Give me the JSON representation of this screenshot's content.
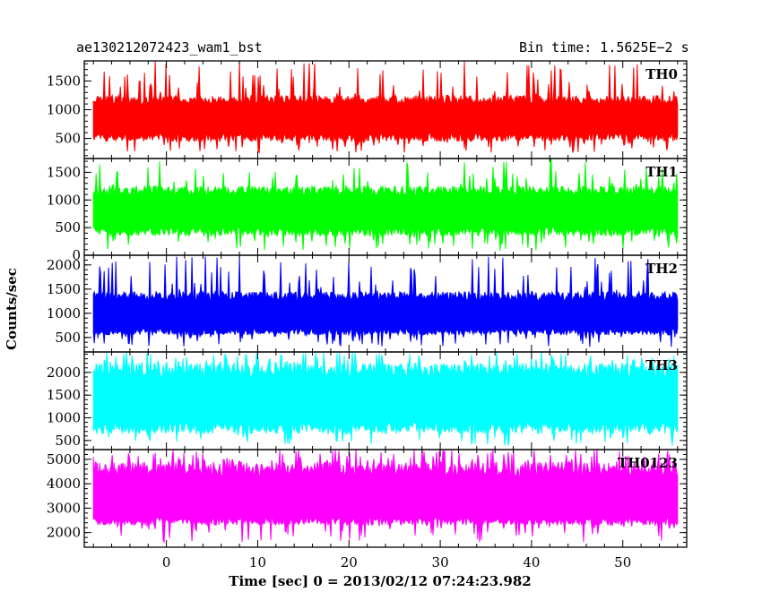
{
  "header": {
    "title": "ae130212072423_wam1_bst",
    "bin_time": "Bin time: 1.5625E−2 s"
  },
  "chart_data": {
    "type": "line",
    "title": "ae130212072423_wam1_bst",
    "subtitle": "Bin time: 1.5625E−2 s",
    "xlabel": "Time [sec] 0 = 2013/02/12 07:24:23.982",
    "ylabel": "Counts/sec",
    "xlim": [
      -9,
      57
    ],
    "x_ticks": [
      0,
      10,
      20,
      30,
      40,
      50
    ],
    "x_range_data": [
      -8,
      56
    ],
    "bin_time_s": 0.015625,
    "grid": false,
    "legend": "none",
    "panels": [
      {
        "name": "TH0",
        "color": "#ff0000",
        "ylim": [
          150,
          1850
        ],
        "y_ticks": [
          500,
          1000,
          1500
        ],
        "typical_min": 250,
        "typical_low": 450,
        "mean": 800,
        "typical_high": 1250,
        "max": 1850
      },
      {
        "name": "TH1",
        "color": "#00ff00",
        "ylim": [
          0,
          1750
        ],
        "y_ticks": [
          0,
          500,
          1000,
          1500
        ],
        "typical_min": 80,
        "typical_low": 350,
        "mean": 750,
        "typical_high": 1250,
        "max": 1750
      },
      {
        "name": "TH2",
        "color": "#0000ff",
        "ylim": [
          200,
          2200
        ],
        "y_ticks": [
          500,
          1000,
          1500,
          2000
        ],
        "typical_min": 300,
        "typical_low": 550,
        "mean": 900,
        "typical_high": 1450,
        "max": 2200
      },
      {
        "name": "TH3",
        "color": "#00ffff",
        "ylim": [
          300,
          2450
        ],
        "y_ticks": [
          500,
          1000,
          1500,
          2000
        ],
        "typical_min": 380,
        "typical_low": 650,
        "mean": 1300,
        "typical_high": 2200,
        "max": 2450
      },
      {
        "name": "TH0123",
        "color": "#ff00ff",
        "ylim": [
          1400,
          5400
        ],
        "y_ticks": [
          2000,
          3000,
          4000,
          5000
        ],
        "typical_min": 1600,
        "typical_low": 2300,
        "mean": 3100,
        "typical_high": 4900,
        "max": 5400
      }
    ]
  }
}
